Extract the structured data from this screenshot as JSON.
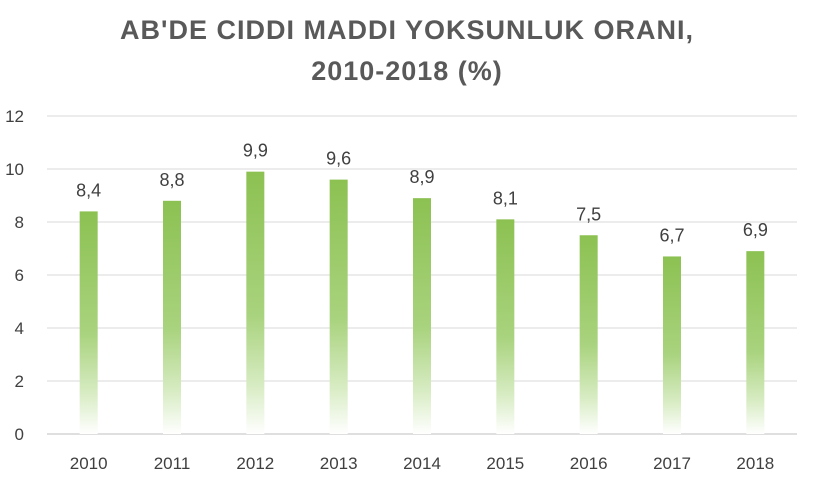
{
  "chart_data": {
    "type": "bar",
    "title_line1": "AB'DE CIDDI MADDI YOKSUNLUK ORANI,",
    "title_line2": "2010-2018 (%)",
    "xlabel": "",
    "ylabel": "",
    "categories": [
      "2010",
      "2011",
      "2012",
      "2013",
      "2014",
      "2015",
      "2016",
      "2017",
      "2018"
    ],
    "values": [
      8.4,
      8.8,
      9.9,
      9.6,
      8.9,
      8.1,
      7.5,
      6.7,
      6.9
    ],
    "data_labels": [
      "8,4",
      "8,8",
      "9,9",
      "9,6",
      "8,9",
      "8,1",
      "7,5",
      "6,7",
      "6,9"
    ],
    "ylim": [
      0,
      12
    ],
    "yticks": [
      0,
      2,
      4,
      6,
      8,
      10,
      12
    ],
    "grid": true,
    "legend": "none",
    "bar_color": "#8CC152",
    "bar_fill": "gradient fading to white at base"
  }
}
